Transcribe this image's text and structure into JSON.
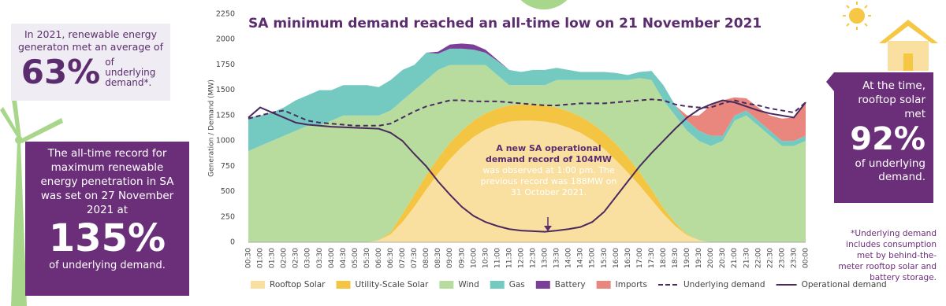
{
  "chart_data": {
    "type": "stacked-area",
    "title": "SA minimum demand reached an all-time low on 21 November 2021",
    "y_label": "Generation / Demand (MW)",
    "categories": [
      "00:30",
      "01:00",
      "01:30",
      "02:00",
      "02:30",
      "03:00",
      "03:30",
      "04:00",
      "04:30",
      "05:00",
      "05:30",
      "06:00",
      "06:30",
      "07:00",
      "07:30",
      "08:00",
      "08:30",
      "09:00",
      "09:30",
      "10:00",
      "10:30",
      "11:00",
      "11:30",
      "12:00",
      "12:30",
      "13:00",
      "13:30",
      "14:00",
      "14:30",
      "15:00",
      "15:30",
      "16:00",
      "16:30",
      "17:00",
      "17:30",
      "18:00",
      "18:30",
      "19:00",
      "19:30",
      "20:00",
      "20:30",
      "21:00",
      "21:30",
      "22:00",
      "22:30",
      "23:00",
      "23:30",
      "00:00"
    ],
    "ylim": [
      0,
      2250
    ],
    "yticks": [
      0,
      250,
      500,
      750,
      1000,
      1250,
      1500,
      1750,
      2000,
      2250
    ],
    "grid": false,
    "series": [
      {
        "name": "Rooftop Solar",
        "color": "#f9e0a0",
        "kind": "area",
        "values": [
          0,
          0,
          0,
          0,
          0,
          0,
          0,
          0,
          0,
          0,
          0,
          20,
          80,
          200,
          350,
          520,
          680,
          820,
          940,
          1040,
          1110,
          1160,
          1190,
          1200,
          1200,
          1190,
          1170,
          1130,
          1080,
          1010,
          920,
          810,
          690,
          560,
          420,
          280,
          160,
          70,
          20,
          0,
          0,
          0,
          0,
          0,
          0,
          0,
          0,
          0
        ]
      },
      {
        "name": "Utility-Scale Solar",
        "color": "#f4c542",
        "kind": "area",
        "values": [
          0,
          0,
          0,
          0,
          0,
          0,
          0,
          0,
          0,
          0,
          0,
          0,
          20,
          80,
          120,
          140,
          150,
          160,
          160,
          160,
          160,
          160,
          160,
          160,
          160,
          160,
          160,
          160,
          160,
          160,
          160,
          160,
          150,
          130,
          100,
          60,
          30,
          10,
          0,
          0,
          0,
          0,
          0,
          0,
          0,
          0,
          0,
          0
        ]
      },
      {
        "name": "Wind",
        "color": "#b8dc9e",
        "kind": "area",
        "values": [
          900,
          950,
          1000,
          1050,
          1100,
          1150,
          1150,
          1200,
          1250,
          1250,
          1250,
          1230,
          1200,
          1120,
          1030,
          940,
          870,
          770,
          650,
          550,
          480,
          330,
          200,
          190,
          190,
          200,
          270,
          310,
          360,
          430,
          520,
          630,
          760,
          930,
          1080,
          1060,
          1060,
          1020,
          980,
          950,
          1000,
          1200,
          1250,
          1150,
          1050,
          950,
          950,
          1000
        ]
      },
      {
        "name": "Gas",
        "color": "#74c9c1",
        "kind": "area",
        "values": [
          330,
          300,
          280,
          280,
          300,
          300,
          350,
          300,
          300,
          300,
          300,
          280,
          300,
          300,
          250,
          270,
          160,
          160,
          160,
          150,
          120,
          140,
          150,
          130,
          150,
          150,
          120,
          100,
          80,
          80,
          80,
          70,
          50,
          60,
          90,
          150,
          100,
          100,
          100,
          100,
          50,
          50,
          50,
          50,
          50,
          50,
          50,
          50
        ]
      },
      {
        "name": "Battery",
        "color": "#7b3f98",
        "kind": "area",
        "values": [
          0,
          0,
          0,
          0,
          0,
          0,
          0,
          0,
          0,
          0,
          0,
          0,
          0,
          0,
          0,
          0,
          20,
          40,
          50,
          50,
          30,
          10,
          0,
          0,
          0,
          0,
          0,
          0,
          0,
          0,
          0,
          0,
          0,
          0,
          0,
          0,
          0,
          0,
          0,
          0,
          0,
          0,
          0,
          0,
          0,
          0,
          0,
          0
        ]
      },
      {
        "name": "Imports",
        "color": "#e9877e",
        "kind": "area",
        "values": [
          0,
          0,
          0,
          0,
          0,
          0,
          0,
          0,
          0,
          0,
          0,
          0,
          0,
          0,
          0,
          0,
          0,
          0,
          0,
          0,
          0,
          0,
          0,
          0,
          0,
          0,
          0,
          0,
          0,
          0,
          0,
          0,
          0,
          0,
          0,
          0,
          0,
          50,
          150,
          300,
          350,
          180,
          120,
          130,
          150,
          220,
          230,
          330
        ]
      },
      {
        "name": "Underlying demand",
        "color": "#4a2a5e",
        "kind": "line",
        "dash": true,
        "values": [
          1220,
          1250,
          1280,
          1300,
          1250,
          1200,
          1180,
          1170,
          1160,
          1150,
          1150,
          1150,
          1170,
          1230,
          1290,
          1340,
          1370,
          1400,
          1400,
          1390,
          1390,
          1390,
          1380,
          1370,
          1360,
          1350,
          1350,
          1360,
          1370,
          1370,
          1370,
          1380,
          1390,
          1400,
          1410,
          1400,
          1360,
          1340,
          1330,
          1330,
          1370,
          1400,
          1370,
          1350,
          1320,
          1300,
          1280,
          1380
        ]
      },
      {
        "name": "Operational demand",
        "color": "#4a2a5e",
        "kind": "line",
        "dash": false,
        "values": [
          1230,
          1330,
          1280,
          1230,
          1180,
          1160,
          1150,
          1140,
          1135,
          1130,
          1125,
          1120,
          1080,
          1000,
          870,
          750,
          600,
          470,
          350,
          260,
          200,
          160,
          130,
          115,
          110,
          104,
          115,
          130,
          150,
          200,
          300,
          450,
          600,
          750,
          880,
          1000,
          1120,
          1230,
          1310,
          1360,
          1400,
          1380,
          1340,
          1300,
          1270,
          1250,
          1230,
          1380
        ]
      }
    ],
    "annotation": {
      "bold": "A new SA operational demand record of 104MW",
      "text": "was observed at 1:00 pm. The previous record was 188MW on 31 October 2021."
    }
  },
  "panels": {
    "average": {
      "text": "In 2021, renewable energy generaton met an average of",
      "big": "63%",
      "small": "of underlying demand*."
    },
    "record": {
      "text": "The all-time record for maximum renewable energy penetration in SA was set on 27 November 2021 at",
      "big": "135%",
      "small": "of underlying demand."
    },
    "rooftop": {
      "text": "At the time, rooftop solar met",
      "big": "92%",
      "small": "of underlying demand."
    },
    "footnote": "*Underlying demand includes consumption met by behind-the-meter rooftop solar and battery storage."
  }
}
